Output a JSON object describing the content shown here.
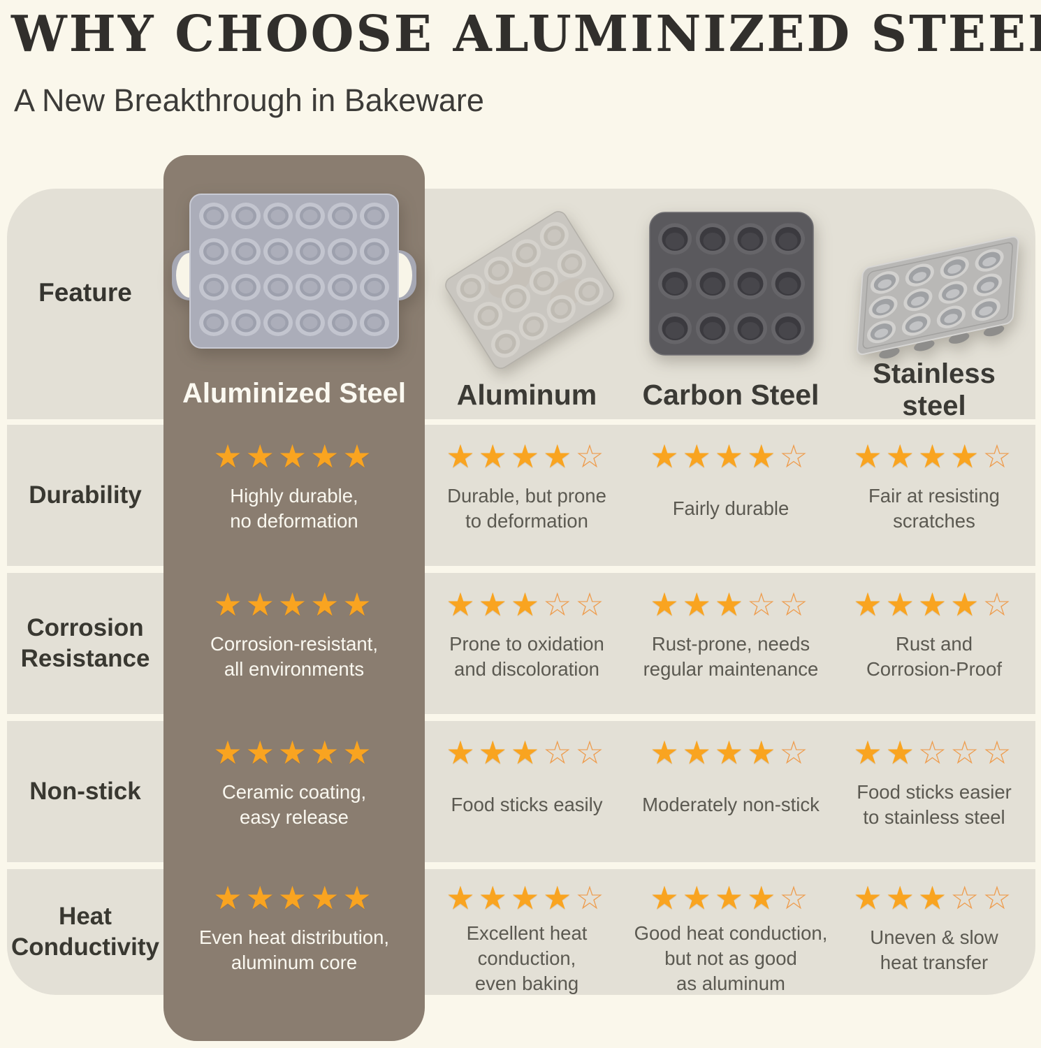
{
  "page": {
    "title": "WHY CHOOSE ALUMINIZED STEEL?",
    "subtitle": "A New Breakthrough in Bakeware"
  },
  "colors": {
    "background": "#FAF7EB",
    "row_band": "#E3E0D6",
    "highlight_column": "#8A7D70",
    "star_filled": "#F9A420",
    "star_outline": "#EE9C4D",
    "title_text": "#312F2C",
    "cell_text": "#5B5951",
    "highlight_cell_text": "#FAF8F0"
  },
  "images": {
    "aluminized": "muffin-pan-24-cup-gray-with-handles",
    "aluminum": "muffin-pan-12-cup-worn-silver-tilted",
    "carbon_steel": "muffin-pan-12-cup-dark-charcoal",
    "stainless": "muffin-pan-12-cup-silver-perspective"
  },
  "table": {
    "corner_label": "Feature",
    "rating_max": 5,
    "columns": [
      {
        "label": "Aluminized Steel",
        "highlight": true
      },
      {
        "label": "Aluminum",
        "highlight": false
      },
      {
        "label": "Carbon Steel",
        "highlight": false
      },
      {
        "label": "Stainless\nsteel",
        "highlight": false
      }
    ],
    "rows": [
      {
        "feature": "Durability",
        "cells": [
          {
            "stars": 5,
            "text": "Highly durable,\nno deformation"
          },
          {
            "stars": 4,
            "text": "Durable, but prone\nto deformation"
          },
          {
            "stars": 4,
            "text": "Fairly durable"
          },
          {
            "stars": 4,
            "text": "Fair at resisting\nscratches"
          }
        ]
      },
      {
        "feature": "Corrosion\nResistance",
        "cells": [
          {
            "stars": 5,
            "text": "Corrosion-resistant,\nall environments"
          },
          {
            "stars": 3,
            "text": "Prone to oxidation\nand discoloration"
          },
          {
            "stars": 3,
            "text": "Rust-prone, needs\nregular maintenance"
          },
          {
            "stars": 4,
            "text": "Rust and\nCorrosion-Proof"
          }
        ]
      },
      {
        "feature": "Non-stick",
        "cells": [
          {
            "stars": 5,
            "text": "Ceramic coating,\neasy release"
          },
          {
            "stars": 3,
            "text": "Food sticks easily"
          },
          {
            "stars": 4,
            "text": "Moderately non-stick"
          },
          {
            "stars": 2,
            "text": "Food sticks easier\nto stainless steel"
          }
        ]
      },
      {
        "feature": "Heat\nConductivity",
        "cells": [
          {
            "stars": 5,
            "text": "Even heat distribution,\naluminum core"
          },
          {
            "stars": 4,
            "text": "Excellent heat\nconduction,\neven baking"
          },
          {
            "stars": 4,
            "text": "Good heat conduction,\nbut not as good\nas aluminum"
          },
          {
            "stars": 3,
            "text": "Uneven & slow\nheat transfer"
          }
        ]
      }
    ]
  },
  "chart_data": {
    "type": "table",
    "title": "WHY CHOOSE ALUMINIZED STEEL?",
    "subtitle": "A New Breakthrough in Bakeware",
    "categories": [
      "Durability",
      "Corrosion Resistance",
      "Non-stick",
      "Heat Conductivity"
    ],
    "series": [
      {
        "name": "Aluminized Steel",
        "values": [
          5,
          5,
          5,
          5
        ],
        "notes": [
          "Highly durable, no deformation",
          "Corrosion-resistant, all environments",
          "Ceramic coating, easy release",
          "Even heat distribution, aluminum core"
        ]
      },
      {
        "name": "Aluminum",
        "values": [
          4,
          3,
          3,
          4
        ],
        "notes": [
          "Durable, but prone to deformation",
          "Prone to oxidation and discoloration",
          "Food sticks easily",
          "Excellent heat conduction, even baking"
        ]
      },
      {
        "name": "Carbon Steel",
        "values": [
          4,
          3,
          4,
          4
        ],
        "notes": [
          "Fairly durable",
          "Rust-prone, needs regular maintenance",
          "Moderately non-stick",
          "Good heat conduction, but not as good as aluminum"
        ]
      },
      {
        "name": "Stainless steel",
        "values": [
          4,
          4,
          2,
          3
        ],
        "notes": [
          "Fair at resisting scratches",
          "Rust and Corrosion-Proof",
          "Food sticks easier to stainless steel",
          "Uneven & slow heat transfer"
        ]
      }
    ],
    "scale_max": 5,
    "legend_position": "column-headers",
    "grid": false
  }
}
